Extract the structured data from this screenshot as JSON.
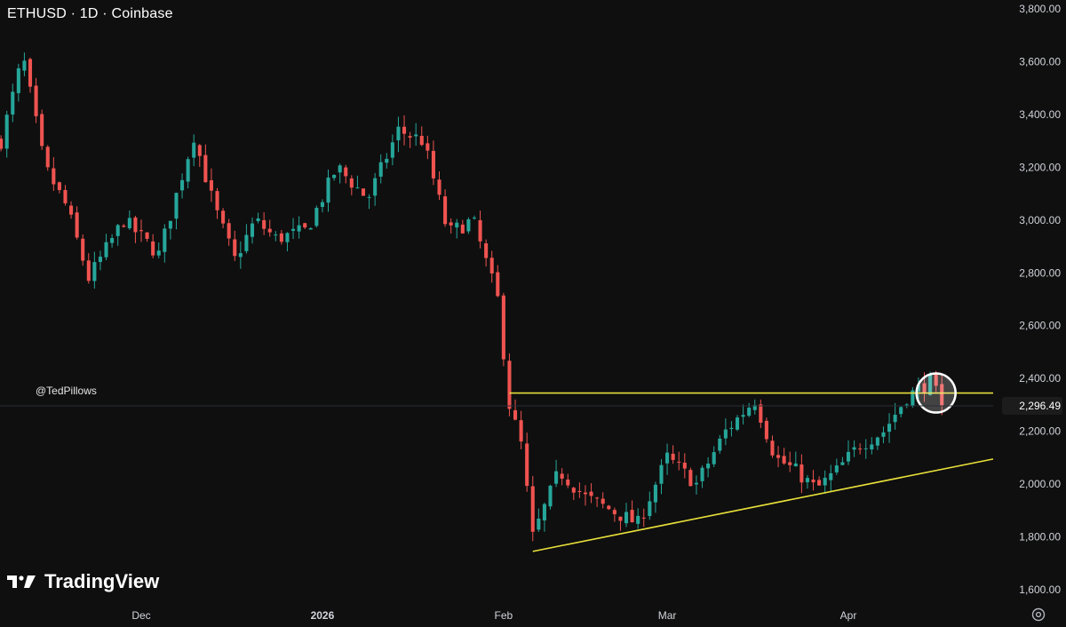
{
  "header": {
    "title": "ETHUSD · 1D · Coinbase"
  },
  "watermark": {
    "handle": "@TedPillows",
    "brand": "TradingView"
  },
  "price_axis": {
    "ticks": [
      "3,800.00",
      "3,600.00",
      "3,400.00",
      "3,200.00",
      "3,000.00",
      "2,800.00",
      "2,600.00",
      "2,400.00",
      "2,200.00",
      "2,000.00",
      "1,800.00",
      "1,600.00"
    ],
    "current_label": "2,296.49"
  },
  "time_axis": {
    "labels": [
      "Dec",
      "2026",
      "Feb",
      "Mar",
      "Apr"
    ]
  },
  "colors": {
    "up": "#26a69a",
    "down": "#ef5350",
    "trendline": "#e8e03a",
    "background": "#0f0f0f",
    "highlight_circle": "#ffffff"
  },
  "icons": {
    "settings": "gear-icon",
    "logo": "tradingview-logo-icon"
  },
  "chart_data": {
    "type": "candlestick",
    "symbol": "ETHUSD",
    "interval": "1D",
    "exchange": "Coinbase",
    "ylim": [
      1600,
      3800
    ],
    "current_price": 2296.49,
    "month_labels": [
      {
        "label": "Dec",
        "date": "2025-12-01"
      },
      {
        "label": "2026",
        "date": "2026-01-01"
      },
      {
        "label": "Feb",
        "date": "2026-02-01"
      },
      {
        "label": "Mar",
        "date": "2026-03-01"
      },
      {
        "label": "Apr",
        "date": "2026-04-01"
      }
    ],
    "segments": [
      {
        "from": "2025-11-07",
        "to": "2025-11-22",
        "points": [
          3300,
          3620,
          3200,
          3050,
          2780
        ]
      },
      {
        "from": "2025-11-22",
        "to": "2025-12-10",
        "points": [
          2780,
          3000,
          2870,
          3320
        ]
      },
      {
        "from": "2025-12-10",
        "to": "2025-12-24",
        "points": [
          3320,
          3050,
          2850,
          3000,
          2930
        ]
      },
      {
        "from": "2025-12-24",
        "to": "2026-01-14",
        "points": [
          2930,
          2960,
          3200,
          3080,
          3340
        ]
      },
      {
        "from": "2026-01-14",
        "to": "2026-01-31",
        "points": [
          3340,
          3300,
          2950,
          3000,
          2700
        ]
      },
      {
        "from": "2026-01-31",
        "to": "2026-02-06",
        "points": [
          2700,
          2300,
          2150,
          1800
        ]
      },
      {
        "from": "2026-02-06",
        "to": "2026-02-24",
        "points": [
          1800,
          2050,
          1950,
          1900,
          1850
        ]
      },
      {
        "from": "2026-02-24",
        "to": "2026-03-16",
        "points": [
          1850,
          2100,
          2000,
          2200,
          2320
        ]
      },
      {
        "from": "2026-03-16",
        "to": "2026-03-30",
        "points": [
          2320,
          2100,
          2050,
          1980,
          2050
        ]
      },
      {
        "from": "2026-03-30",
        "to": "2026-04-15",
        "points": [
          2050,
          2150,
          2200,
          2330,
          2390
        ]
      },
      {
        "from": "2026-04-15",
        "to": "2026-04-17",
        "points": [
          2390,
          2296.49
        ]
      }
    ],
    "trendlines": [
      {
        "name": "resistance",
        "from": {
          "date": "2026-02-02",
          "price": 2345
        },
        "to": {
          "date": "2026-05-01",
          "price": 2345
        }
      },
      {
        "name": "rising support",
        "from": {
          "date": "2026-02-06",
          "price": 1745
        },
        "to": {
          "date": "2026-05-01",
          "price": 2095
        }
      }
    ],
    "highlight": {
      "label": "breakout retest",
      "date": "2026-04-16",
      "price": 2345
    }
  }
}
